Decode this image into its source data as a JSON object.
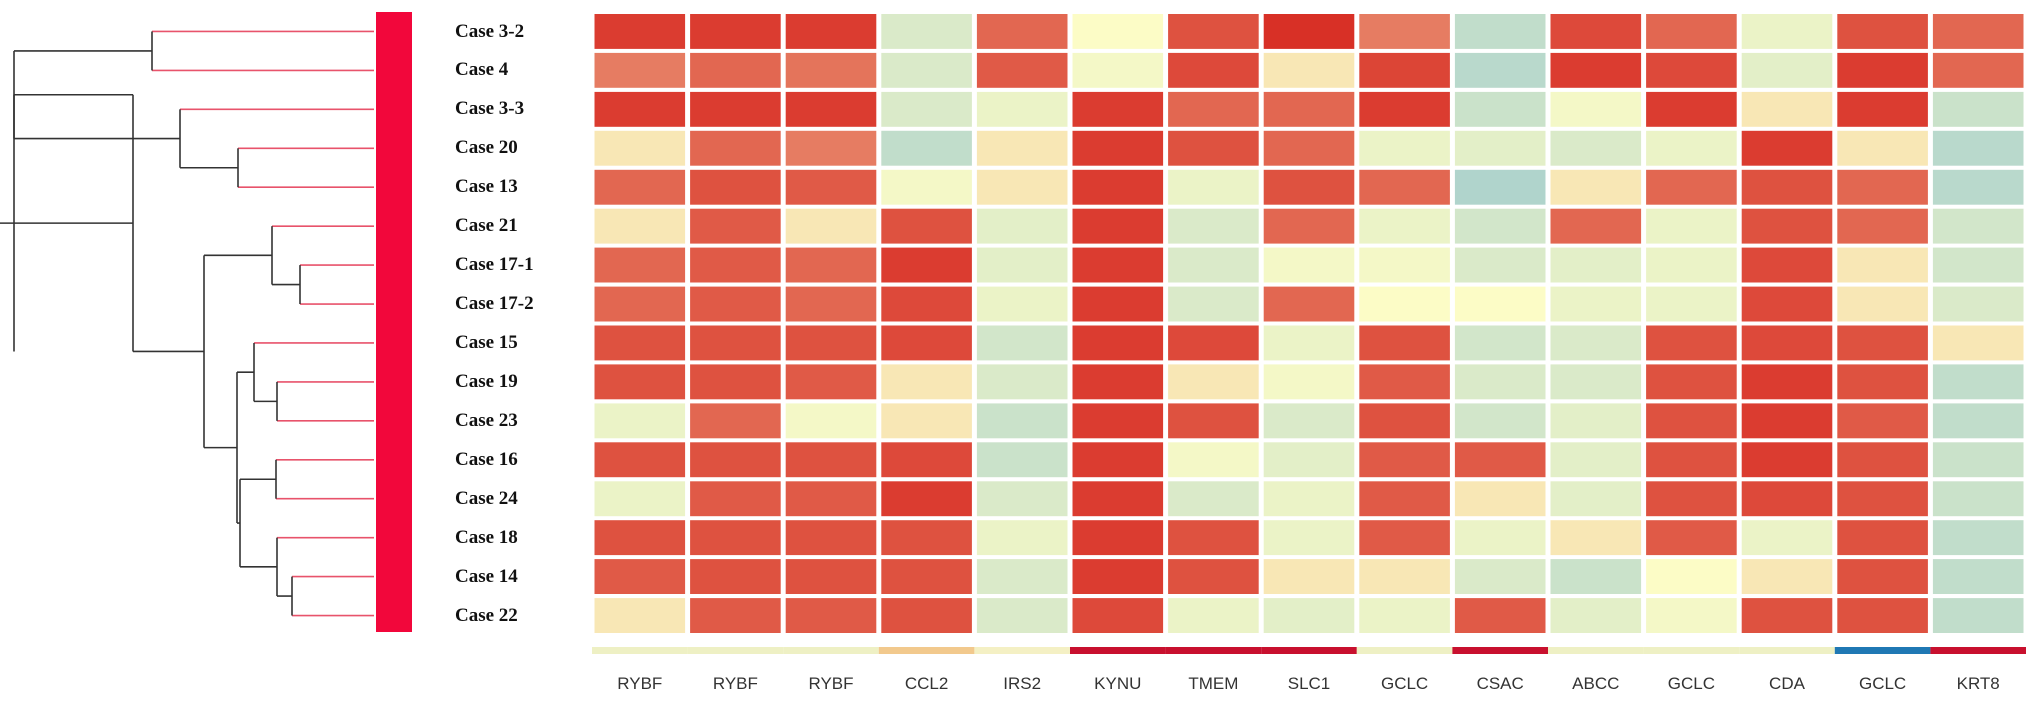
{
  "chart_data": {
    "type": "heatmap",
    "rows": [
      "Case 3-2",
      "Case 4",
      "Case 3-3",
      "Case 20",
      "Case 13",
      "Case 21",
      "Case 17-1",
      "Case 17-2",
      "Case 15",
      "Case 19",
      "Case 23",
      "Case 16",
      "Case 24",
      "Case 18",
      "Case 14",
      "Case 22"
    ],
    "columns": [
      "RYBF",
      "RYBF",
      "RYBF",
      "CCL2",
      "IRS2",
      "KYNU",
      "TMEM",
      "SLC1",
      "GCLC",
      "CSAC",
      "ABCC",
      "GCLC",
      "CDA",
      "GCLC",
      "KRT8"
    ],
    "column_group_colors": [
      "#eef0c4",
      "#eef0c4",
      "#eef0c4",
      "#f2c98d",
      "#f4f0c4",
      "#c8102e",
      "#c8102e",
      "#c8102e",
      "#eef0c4",
      "#c8102e",
      "#eef0c4",
      "#eef0c4",
      "#eef0c4",
      "#1f78b4",
      "#c8102e"
    ],
    "cluster_bar_color": "#f2073b",
    "color_scale": [
      "#a8d0cd",
      "#fcfcc6",
      "#d7271f"
    ],
    "values": [
      [
        0.95,
        0.95,
        0.95,
        0.3,
        0.85,
        0.5,
        0.9,
        0.98,
        0.8,
        0.15,
        0.92,
        0.85,
        0.4,
        0.9,
        0.85
      ],
      [
        0.8,
        0.85,
        0.82,
        0.3,
        0.88,
        0.45,
        0.92,
        0.55,
        0.93,
        0.1,
        0.95,
        0.92,
        0.35,
        0.95,
        0.85
      ],
      [
        0.95,
        0.95,
        0.95,
        0.3,
        0.4,
        0.95,
        0.85,
        0.85,
        0.95,
        0.2,
        0.45,
        0.95,
        0.55,
        0.95,
        0.2
      ],
      [
        0.55,
        0.85,
        0.8,
        0.15,
        0.55,
        0.95,
        0.9,
        0.85,
        0.4,
        0.35,
        0.3,
        0.4,
        0.95,
        0.55,
        0.1
      ],
      [
        0.85,
        0.9,
        0.88,
        0.45,
        0.55,
        0.95,
        0.4,
        0.9,
        0.85,
        0.05,
        0.55,
        0.85,
        0.9,
        0.85,
        0.1
      ],
      [
        0.55,
        0.88,
        0.55,
        0.9,
        0.35,
        0.95,
        0.3,
        0.85,
        0.4,
        0.25,
        0.85,
        0.4,
        0.9,
        0.85,
        0.25
      ],
      [
        0.85,
        0.88,
        0.85,
        0.95,
        0.35,
        0.95,
        0.3,
        0.45,
        0.45,
        0.3,
        0.35,
        0.4,
        0.92,
        0.55,
        0.25
      ],
      [
        0.85,
        0.88,
        0.85,
        0.92,
        0.4,
        0.95,
        0.3,
        0.85,
        0.5,
        0.5,
        0.4,
        0.4,
        0.92,
        0.55,
        0.3
      ],
      [
        0.9,
        0.9,
        0.9,
        0.92,
        0.25,
        0.95,
        0.92,
        0.4,
        0.9,
        0.25,
        0.3,
        0.9,
        0.92,
        0.9,
        0.55
      ],
      [
        0.9,
        0.9,
        0.88,
        0.55,
        0.3,
        0.95,
        0.55,
        0.45,
        0.88,
        0.3,
        0.3,
        0.9,
        0.95,
        0.9,
        0.15
      ],
      [
        0.4,
        0.85,
        0.45,
        0.55,
        0.2,
        0.95,
        0.9,
        0.3,
        0.9,
        0.25,
        0.35,
        0.9,
        0.95,
        0.88,
        0.15
      ],
      [
        0.9,
        0.9,
        0.9,
        0.92,
        0.2,
        0.95,
        0.45,
        0.35,
        0.88,
        0.88,
        0.35,
        0.9,
        0.95,
        0.9,
        0.2
      ],
      [
        0.4,
        0.88,
        0.88,
        0.95,
        0.3,
        0.95,
        0.3,
        0.4,
        0.88,
        0.55,
        0.35,
        0.9,
        0.92,
        0.9,
        0.2
      ],
      [
        0.9,
        0.9,
        0.9,
        0.9,
        0.4,
        0.95,
        0.9,
        0.4,
        0.88,
        0.4,
        0.55,
        0.88,
        0.4,
        0.9,
        0.15
      ],
      [
        0.88,
        0.9,
        0.9,
        0.9,
        0.3,
        0.95,
        0.9,
        0.55,
        0.55,
        0.3,
        0.2,
        0.5,
        0.55,
        0.9,
        0.15
      ],
      [
        0.55,
        0.88,
        0.88,
        0.9,
        0.3,
        0.92,
        0.4,
        0.35,
        0.4,
        0.88,
        0.35,
        0.45,
        0.9,
        0.9,
        0.15
      ]
    ]
  }
}
